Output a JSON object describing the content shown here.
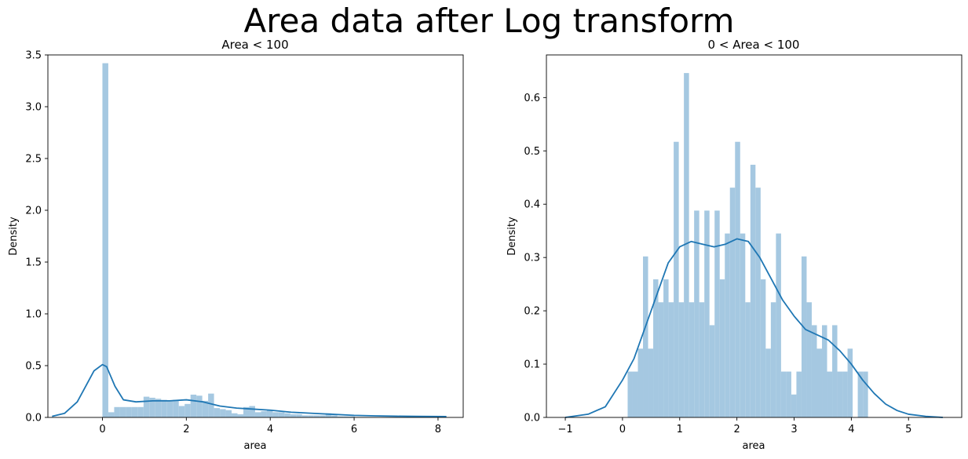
{
  "figure": {
    "suptitle": "Area data after Log transform"
  },
  "chart_data": [
    {
      "type": "bar",
      "title": "Area < 100",
      "xlabel": "area",
      "ylabel": "Density",
      "xlim": [
        -1.3,
        8.6
      ],
      "ylim": [
        0,
        3.5
      ],
      "xticks": [
        0,
        2,
        4,
        6,
        8
      ],
      "xtick_labels": [
        "0",
        "2",
        "4",
        "6",
        "8"
      ],
      "yticks": [
        0.0,
        0.5,
        1.0,
        1.5,
        2.0,
        2.5,
        3.0,
        3.5
      ],
      "ytick_labels": [
        "0.0",
        "0.5",
        "1.0",
        "1.5",
        "2.0",
        "2.5",
        "3.0",
        "3.5"
      ],
      "bar_color": "#a5c8e1",
      "kde_color": "#1f77b4",
      "histogram": {
        "bin_start": 0.0,
        "bin_width": 0.14,
        "values": [
          3.42,
          0.05,
          0.1,
          0.1,
          0.1,
          0.1,
          0.1,
          0.2,
          0.19,
          0.18,
          0.17,
          0.16,
          0.17,
          0.11,
          0.13,
          0.22,
          0.21,
          0.16,
          0.23,
          0.09,
          0.08,
          0.07,
          0.04,
          0.03,
          0.1,
          0.11,
          0.05,
          0.06,
          0.07,
          0.05,
          0.05,
          0.04,
          0.03,
          0.03,
          0.02,
          0.02,
          0.02,
          0.02,
          0.04,
          0.02,
          0.01,
          0.01,
          0.01,
          0.0,
          0.0,
          0.0,
          0.0,
          0.0,
          0.0,
          0.0
        ]
      },
      "kde": {
        "x": [
          -1.2,
          -0.9,
          -0.6,
          -0.4,
          -0.2,
          0.0,
          0.1,
          0.3,
          0.5,
          0.8,
          1.2,
          1.6,
          2.0,
          2.4,
          2.8,
          3.2,
          3.6,
          4.0,
          4.5,
          5.0,
          5.5,
          6.0,
          6.5,
          7.0,
          7.5,
          8.2
        ],
        "y": [
          0.01,
          0.04,
          0.15,
          0.3,
          0.45,
          0.51,
          0.49,
          0.3,
          0.17,
          0.15,
          0.16,
          0.16,
          0.17,
          0.15,
          0.11,
          0.09,
          0.08,
          0.07,
          0.05,
          0.04,
          0.03,
          0.02,
          0.015,
          0.012,
          0.01,
          0.008
        ]
      }
    },
    {
      "type": "bar",
      "title": "0 < Area < 100",
      "xlabel": "area",
      "ylabel": "Density",
      "xlim": [
        -1.33,
        5.93
      ],
      "ylim": [
        0,
        0.68
      ],
      "xticks": [
        -1,
        0,
        1,
        2,
        3,
        4,
        5
      ],
      "xtick_labels": [
        "−1",
        "0",
        "1",
        "2",
        "3",
        "4",
        "5"
      ],
      "yticks": [
        0.0,
        0.1,
        0.2,
        0.3,
        0.4,
        0.5,
        0.6
      ],
      "ytick_labels": [
        "0.0",
        "0.1",
        "0.2",
        "0.3",
        "0.4",
        "0.5",
        "0.6"
      ],
      "bar_color": "#a5c8e1",
      "kde_color": "#1f77b4",
      "histogram": {
        "bin_start": 0.09,
        "bin_width": 0.0894,
        "values": [
          0.086,
          0.086,
          0.129,
          0.302,
          0.129,
          0.259,
          0.216,
          0.259,
          0.216,
          0.517,
          0.216,
          0.646,
          0.216,
          0.388,
          0.216,
          0.388,
          0.173,
          0.388,
          0.259,
          0.345,
          0.431,
          0.517,
          0.345,
          0.216,
          0.474,
          0.431,
          0.259,
          0.129,
          0.216,
          0.345,
          0.086,
          0.086,
          0.043,
          0.086,
          0.302,
          0.216,
          0.173,
          0.129,
          0.173,
          0.086,
          0.173,
          0.086,
          0.086,
          0.129,
          0.0,
          0.086,
          0.086
        ]
      },
      "kde": {
        "x": [
          -1.0,
          -0.6,
          -0.3,
          0.0,
          0.2,
          0.4,
          0.6,
          0.8,
          1.0,
          1.2,
          1.4,
          1.6,
          1.8,
          2.0,
          2.2,
          2.4,
          2.6,
          2.8,
          3.0,
          3.2,
          3.4,
          3.6,
          3.8,
          4.0,
          4.2,
          4.4,
          4.6,
          4.8,
          5.0,
          5.3,
          5.6
        ],
        "y": [
          0.0,
          0.006,
          0.02,
          0.07,
          0.11,
          0.17,
          0.23,
          0.29,
          0.32,
          0.33,
          0.325,
          0.32,
          0.325,
          0.335,
          0.33,
          0.3,
          0.26,
          0.22,
          0.19,
          0.165,
          0.155,
          0.145,
          0.125,
          0.1,
          0.07,
          0.045,
          0.025,
          0.013,
          0.006,
          0.002,
          0.0
        ]
      }
    }
  ]
}
